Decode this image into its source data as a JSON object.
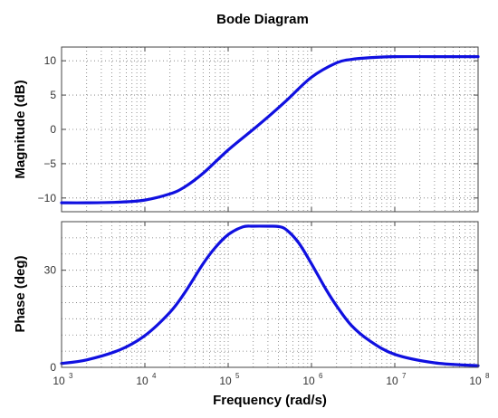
{
  "chart_data": {
    "type": "line",
    "title": "Bode Diagram",
    "xlabel": "Frequency  (rad/s)",
    "x_scale": "log",
    "xlim": [
      1000,
      100000000
    ],
    "x_ticks": [
      {
        "value": 1000,
        "base": "10",
        "exp": "3"
      },
      {
        "value": 10000,
        "base": "10",
        "exp": "4"
      },
      {
        "value": 100000,
        "base": "10",
        "exp": "5"
      },
      {
        "value": 1000000,
        "base": "10",
        "exp": "6"
      },
      {
        "value": 10000000,
        "base": "10",
        "exp": "7"
      },
      {
        "value": 100000000,
        "base": "10",
        "exp": "8"
      }
    ],
    "grid": true,
    "line_color": "#1010e0",
    "panels": [
      {
        "name": "magnitude",
        "ylabel": "Magnitude (dB)",
        "ylim": [
          -12,
          12
        ],
        "y_ticks": [
          {
            "value": 10,
            "label": "10"
          },
          {
            "value": 5,
            "label": "5"
          },
          {
            "value": 0,
            "label": "0"
          },
          {
            "value": -5,
            "label": "−5"
          },
          {
            "value": -10,
            "label": "−10"
          }
        ],
        "x": [
          1000,
          2000,
          5000,
          10000,
          20000,
          30000,
          50000,
          100000,
          200000,
          300000,
          500000,
          1000000,
          2000000,
          3000000,
          5000000,
          10000000,
          30000000,
          100000000
        ],
        "y": [
          -10.7,
          -10.7,
          -10.6,
          -10.3,
          -9.4,
          -8.4,
          -6.4,
          -3.0,
          0.0,
          1.8,
          4.2,
          7.6,
          9.7,
          10.2,
          10.45,
          10.6,
          10.6,
          10.6
        ]
      },
      {
        "name": "phase",
        "ylabel": "Phase (deg)",
        "ylim": [
          0,
          45
        ],
        "y_ticks": [
          {
            "value": 30,
            "label": "30"
          },
          {
            "value": 0,
            "label": "0"
          }
        ],
        "x": [
          1000,
          2000,
          5000,
          10000,
          20000,
          30000,
          50000,
          70000,
          100000,
          150000,
          200000,
          300000,
          400000,
          500000,
          700000,
          1000000,
          1500000,
          2000000,
          3000000,
          5000000,
          10000000,
          30000000,
          100000000
        ],
        "y": [
          1.2,
          2.3,
          5.4,
          9.8,
          17.0,
          23.0,
          32.0,
          37.0,
          41.0,
          43.4,
          43.6,
          43.6,
          43.5,
          42.5,
          38.5,
          32.0,
          24.0,
          19.0,
          13.0,
          8.2,
          4.0,
          1.4,
          0.5
        ]
      }
    ]
  }
}
